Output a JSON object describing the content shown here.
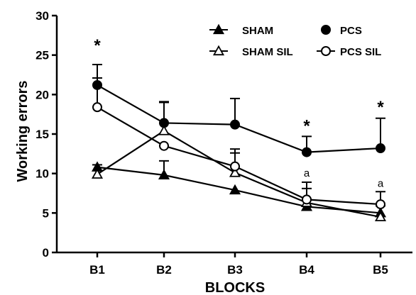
{
  "chart_data": {
    "type": "line",
    "title": "",
    "xlabel": "BLOCKS",
    "ylabel": "Working errors",
    "categories": [
      "B1",
      "B2",
      "B3",
      "B4",
      "B5"
    ],
    "ylim": [
      0,
      30
    ],
    "yticks": [
      0,
      5,
      10,
      15,
      20,
      25,
      30
    ],
    "grid": false,
    "legend_position": "top-right",
    "series": [
      {
        "name": "SHAM",
        "marker": "triangle-filled",
        "values": [
          10.8,
          9.8,
          7.9,
          5.8,
          5.0
        ],
        "error": [
          0,
          1.8,
          0,
          0,
          0
        ]
      },
      {
        "name": "PCS",
        "marker": "circle-filled",
        "values": [
          21.2,
          16.4,
          16.2,
          12.7,
          13.2
        ],
        "error": [
          2.6,
          2.7,
          3.3,
          2.0,
          3.8
        ]
      },
      {
        "name": "SHAM SIL",
        "marker": "triangle-open",
        "values": [
          9.9,
          15.4,
          10.1,
          6.3,
          4.5
        ],
        "error": [
          1.2,
          3.6,
          2.5,
          1.8,
          1.4
        ]
      },
      {
        "name": "PCS SIL",
        "marker": "circle-open",
        "values": [
          18.4,
          13.5,
          10.9,
          6.7,
          6.1
        ],
        "error": [
          3.7,
          0,
          2.2,
          2.2,
          1.6
        ]
      }
    ],
    "annotations": [
      {
        "category": "B1",
        "text": "*",
        "y": 26.4
      },
      {
        "category": "B4",
        "text": "*",
        "y": 16.2
      },
      {
        "category": "B5",
        "text": "*",
        "y": 18.6
      },
      {
        "category": "B4",
        "text": "a",
        "y": 9.6
      },
      {
        "category": "B5",
        "text": "a",
        "y": 8.3
      }
    ]
  }
}
